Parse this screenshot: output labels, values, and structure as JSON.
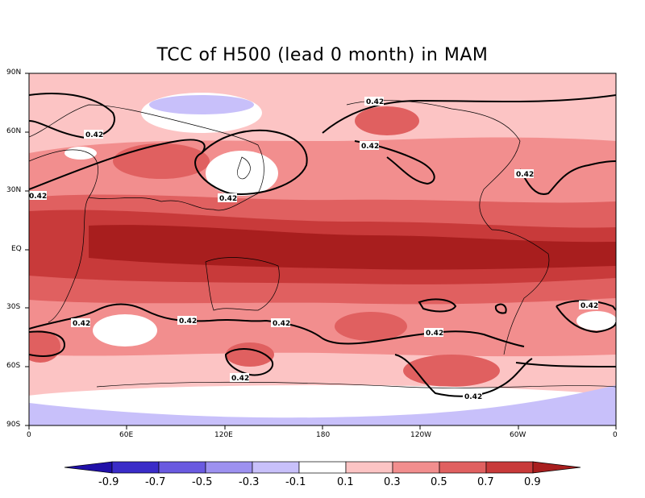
{
  "title": "TCC of H500 (lead 0 month) in MAM",
  "lat_ticks": [
    "90N",
    "60N",
    "30N",
    "EQ",
    "30S",
    "60S",
    "90S"
  ],
  "lon_ticks": [
    "0",
    "60E",
    "120E",
    "180",
    "120W",
    "60W",
    "0"
  ],
  "contour_level": "0.42",
  "contour_label": "0.42",
  "colorbar": {
    "labels": [
      "-0.9",
      "-0.7",
      "-0.5",
      "-0.3",
      "-0.1",
      "0.1",
      "0.3",
      "0.5",
      "0.7",
      "0.9"
    ],
    "colors": [
      "#2010a8",
      "#3a2cc8",
      "#6a5ae0",
      "#9d91f0",
      "#c8c0fa",
      "#ffffff",
      "#fcc4c4",
      "#f28e8e",
      "#e06060",
      "#c83a3a",
      "#a81e1e"
    ]
  },
  "chart_data": {
    "type": "heatmap",
    "title": "TCC of H500 (lead 0 month) in MAM",
    "x_axis_ticks": [
      "0",
      "60E",
      "120E",
      "180",
      "120W",
      "60W",
      "0"
    ],
    "y_axis_ticks": [
      "90N",
      "60N",
      "30N",
      "EQ",
      "30S",
      "60S",
      "90S"
    ],
    "contour_levels": [
      0.42
    ],
    "color_levels": [
      -0.9,
      -0.7,
      -0.5,
      -0.3,
      -0.1,
      0.1,
      0.3,
      0.5,
      0.7,
      0.9
    ]
  }
}
